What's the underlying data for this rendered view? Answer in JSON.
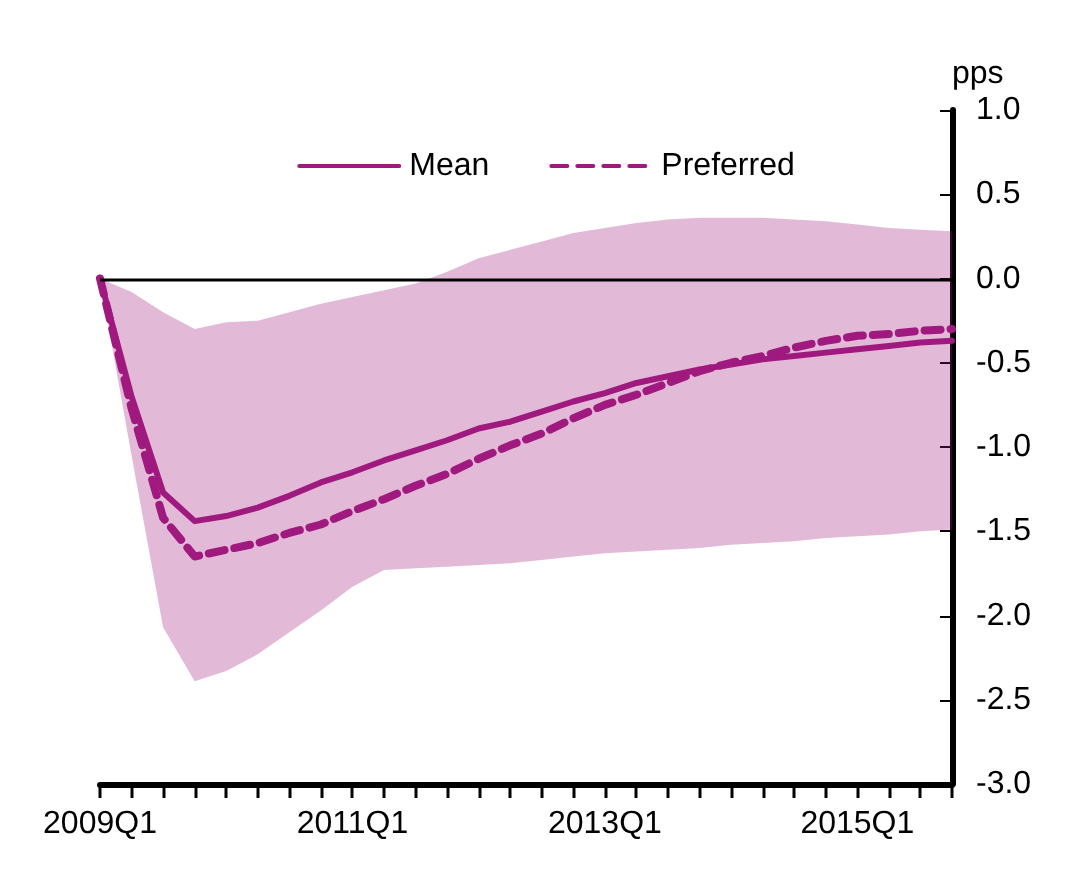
{
  "chart_data": {
    "type": "line",
    "ylabel": "pps",
    "categories": [
      "2009Q1",
      null,
      null,
      null,
      null,
      null,
      null,
      null,
      "2011Q1",
      null,
      null,
      null,
      null,
      null,
      null,
      null,
      "2013Q1",
      null,
      null,
      null,
      null,
      null,
      null,
      null,
      "2015Q1",
      null,
      null,
      null
    ],
    "series": [
      {
        "name": "Mean",
        "color": "#a0197f",
        "line_style": "solid",
        "values": [
          0,
          -0.7,
          -1.27,
          -1.44,
          -1.41,
          -1.36,
          -1.29,
          -1.21,
          -1.15,
          -1.08,
          -1.02,
          -0.96,
          -0.89,
          -0.85,
          -0.79,
          -0.73,
          -0.68,
          -0.62,
          -0.58,
          -0.54,
          -0.51,
          -0.48,
          -0.46,
          -0.44,
          -0.42,
          -0.4,
          -0.38,
          -0.37
        ],
        "upper": [
          0,
          -0.08,
          -0.2,
          -0.3,
          -0.26,
          -0.25,
          -0.2,
          -0.15,
          -0.11,
          -0.07,
          -0.03,
          0.04,
          0.12,
          0.17,
          0.22,
          0.27,
          0.3,
          0.33,
          0.35,
          0.36,
          0.36,
          0.36,
          0.35,
          0.34,
          0.32,
          0.3,
          0.29,
          0.28
        ],
        "lower": [
          0,
          -1.05,
          -2.07,
          -2.39,
          -2.33,
          -2.23,
          -2.1,
          -1.97,
          -1.83,
          -1.73,
          -1.72,
          -1.71,
          -1.7,
          -1.69,
          -1.67,
          -1.65,
          -1.63,
          -1.62,
          -1.61,
          -1.6,
          -1.58,
          -1.57,
          -1.56,
          -1.54,
          -1.53,
          -1.52,
          -1.5,
          -1.49
        ]
      },
      {
        "name": "Preferred",
        "color": "#a0197f",
        "line_style": "dashed",
        "values": [
          0,
          -0.77,
          -1.42,
          -1.65,
          -1.61,
          -1.57,
          -1.51,
          -1.46,
          -1.38,
          -1.31,
          -1.23,
          -1.16,
          -1.07,
          -0.99,
          -0.92,
          -0.83,
          -0.75,
          -0.69,
          -0.62,
          -0.55,
          -0.5,
          -0.46,
          -0.41,
          -0.37,
          -0.34,
          -0.33,
          -0.31,
          -0.3
        ]
      }
    ],
    "ylim": [
      -3,
      1
    ],
    "yticks": [
      {
        "value": 1,
        "label": "1.0"
      },
      {
        "value": 0.5,
        "label": "0.5"
      },
      {
        "value": 0,
        "label": "0.0"
      },
      {
        "value": -0.5,
        "label": "-0.5"
      },
      {
        "value": -1,
        "label": "-1.0"
      },
      {
        "value": -1.5,
        "label": "-1.5"
      },
      {
        "value": -2,
        "label": "-2.0"
      },
      {
        "value": -2.5,
        "label": "-2.5"
      },
      {
        "value": -3,
        "label": "-3.0"
      }
    ],
    "ref_lines": [
      {
        "axis": "y",
        "value": 0,
        "color": "#000000"
      }
    ],
    "grid": false,
    "legend": "top",
    "marker": "none"
  }
}
